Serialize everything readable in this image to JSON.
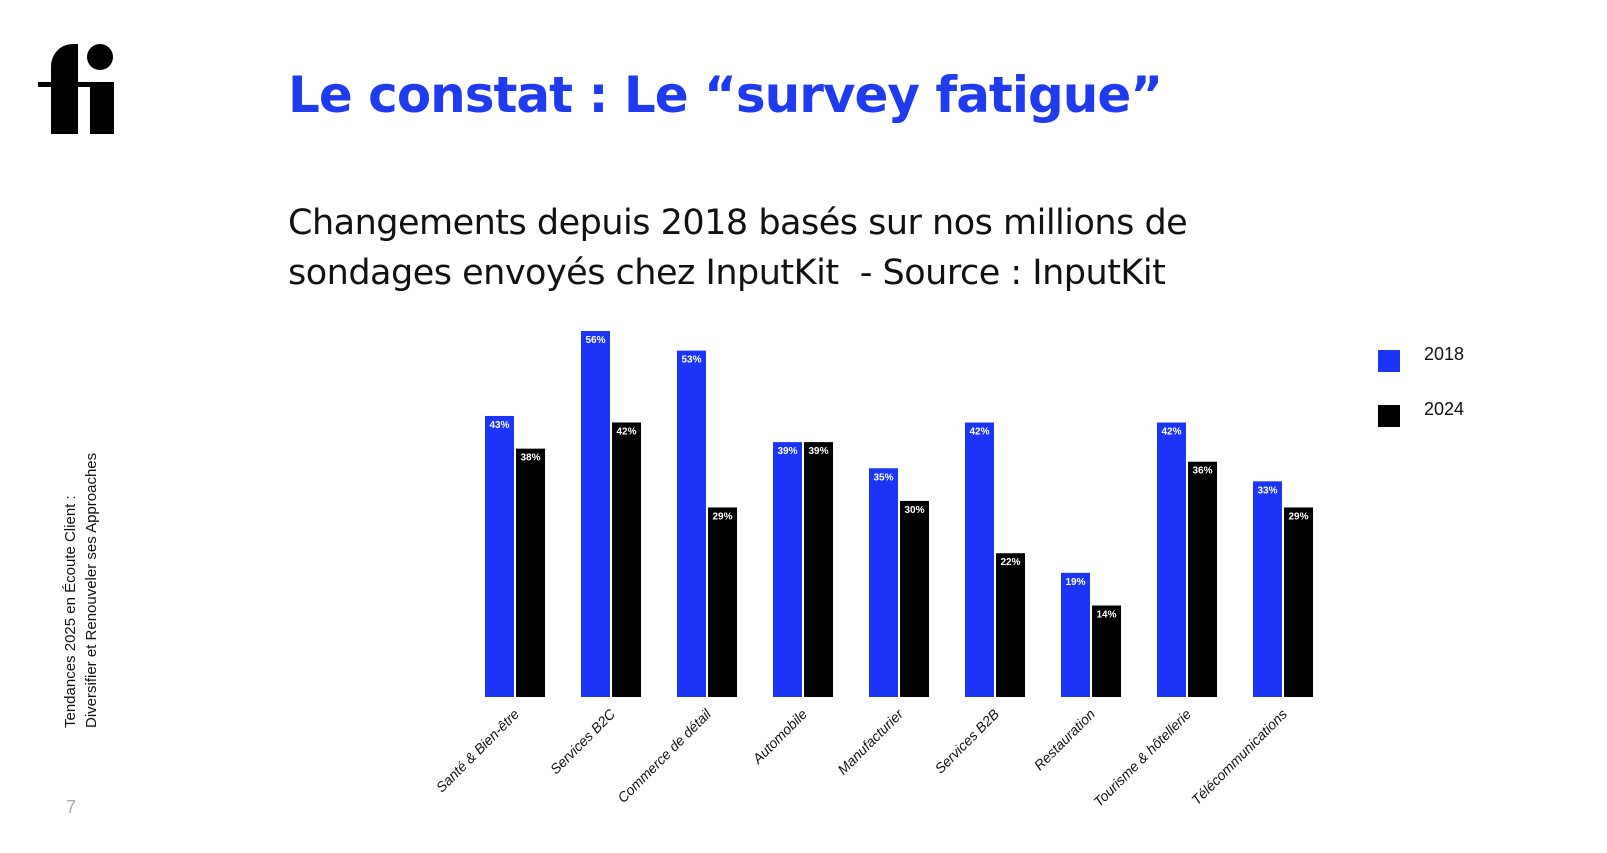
{
  "slide": {
    "logo_text": "fi",
    "title": "Le constat : Le “survey fatigue”",
    "subtitle": "Changements depuis 2018 basés sur nos millions de\nsondages envoyés chez InputKit  - Source : InputKit",
    "side_line1": "Tendances 2025 en Écoute Client :",
    "side_line2": "Diversifier et Renouveler ses Approaches",
    "page_number": "7"
  },
  "chart_data": {
    "type": "bar",
    "title": "",
    "xlabel": "",
    "ylabel": "",
    "ylim": [
      0,
      56
    ],
    "grid": false,
    "legend_placement": "top-right",
    "categories": [
      "Santé & Bien-être",
      "Services B2C",
      "Commerce de détail",
      "Automobile",
      "Manufacturier",
      "Services B2B",
      "Restauration",
      "Tourisme & hôtellerie",
      "Télécommunications"
    ],
    "series": [
      {
        "name": "2018",
        "color": "#1a35f5",
        "values": [
          43,
          56,
          53,
          39,
          35,
          42,
          19,
          42,
          33
        ]
      },
      {
        "name": "2024",
        "color": "#000000",
        "values": [
          38,
          42,
          29,
          39,
          30,
          22,
          14,
          36,
          29
        ]
      }
    ],
    "value_suffix": "%"
  }
}
